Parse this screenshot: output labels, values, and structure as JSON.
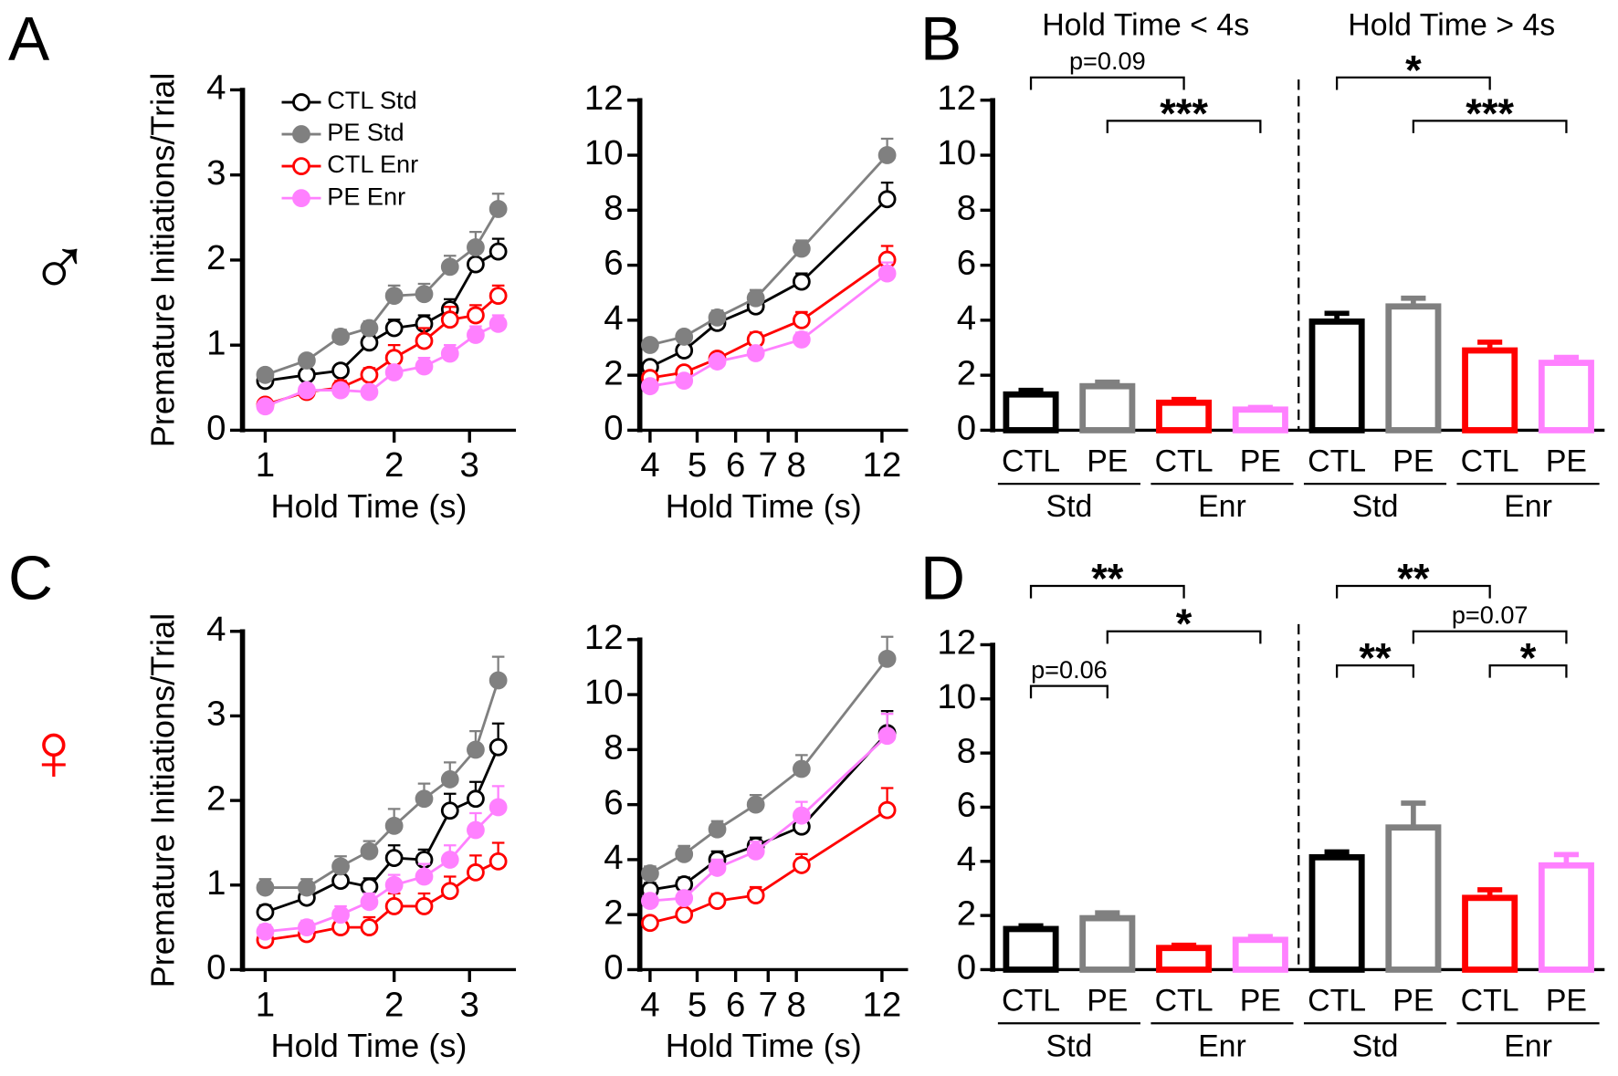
{
  "panel_labels": [
    "A",
    "B",
    "C",
    "D"
  ],
  "sex_symbols": [
    "♂",
    "♀"
  ],
  "chart_data": [
    {
      "type": "line",
      "xlog": true,
      "ylabel": "Premature Initiations/Trial",
      "xlabel": "Hold Time (s)",
      "legend": "upper left",
      "x": [
        1,
        1.25,
        1.5,
        1.75,
        2,
        2.35,
        2.7,
        3.1,
        3.5
      ],
      "xlim": [
        0.885,
        3.85
      ],
      "xticks": [
        1,
        2,
        3
      ],
      "ylim": [
        0,
        4
      ],
      "yticks": [
        0,
        1,
        2,
        3,
        4
      ],
      "series": [
        {
          "name": "CTL Std",
          "color": "#000000",
          "filled": false,
          "values": [
            0.58,
            0.65,
            0.7,
            1.03,
            1.2,
            1.25,
            1.42,
            1.95,
            2.1
          ],
          "errors": [
            0.05,
            0.05,
            0.06,
            0.08,
            0.1,
            0.1,
            0.12,
            0.15,
            0.15
          ]
        },
        {
          "name": "PE Std",
          "color": "#808080",
          "filled": true,
          "values": [
            0.65,
            0.82,
            1.1,
            1.2,
            1.58,
            1.6,
            1.92,
            2.15,
            2.6
          ],
          "errors": [
            0.05,
            0.05,
            0.08,
            0.08,
            0.12,
            0.12,
            0.13,
            0.18,
            0.18
          ]
        },
        {
          "name": "CTL Enr",
          "color": "#ff0000",
          "filled": false,
          "values": [
            0.3,
            0.45,
            0.5,
            0.65,
            0.85,
            1.05,
            1.3,
            1.35,
            1.58
          ],
          "errors": [
            0.05,
            0.08,
            0.08,
            0.08,
            0.15,
            0.15,
            0.15,
            0.12,
            0.12
          ]
        },
        {
          "name": "PE Enr",
          "color": "#ff80ff",
          "filled": true,
          "values": [
            0.28,
            0.47,
            0.47,
            0.45,
            0.68,
            0.75,
            0.9,
            1.12,
            1.25
          ],
          "errors": [
            0.05,
            0.05,
            0.05,
            0.05,
            0.08,
            0.1,
            0.1,
            0.1,
            0.1
          ]
        }
      ]
    },
    {
      "type": "line",
      "xlog": true,
      "xlabel": "Hold Time (s)",
      "x": [
        4,
        4.7,
        5.5,
        6.6,
        8.2,
        12.3
      ],
      "xlim": [
        3.81,
        13.58
      ],
      "xticks": [
        4,
        5,
        6,
        7,
        8,
        12
      ],
      "ylim": [
        0,
        12
      ],
      "yticks": [
        0,
        2,
        4,
        6,
        8,
        10,
        12
      ],
      "series": [
        {
          "name": "CTL Std",
          "color": "#000000",
          "filled": false,
          "values": [
            2.3,
            2.9,
            3.9,
            4.5,
            5.4,
            8.4
          ],
          "errors": [
            0.2,
            0.2,
            0.25,
            0.3,
            0.3,
            0.6
          ]
        },
        {
          "name": "PE Std",
          "color": "#808080",
          "filled": true,
          "values": [
            3.1,
            3.4,
            4.1,
            4.8,
            6.6,
            10
          ],
          "errors": [
            0.2,
            0.2,
            0.25,
            0.3,
            0.3,
            0.6
          ]
        },
        {
          "name": "CTL Enr",
          "color": "#ff0000",
          "filled": false,
          "values": [
            1.9,
            2.1,
            2.6,
            3.3,
            4.0,
            6.2
          ],
          "errors": [
            0.2,
            0.2,
            0.2,
            0.25,
            0.3,
            0.5
          ]
        },
        {
          "name": "PE Enr",
          "color": "#ff80ff",
          "filled": true,
          "values": [
            1.6,
            1.8,
            2.5,
            2.8,
            3.3,
            5.7
          ],
          "errors": [
            0.15,
            0.15,
            0.2,
            0.2,
            0.25,
            0.4
          ]
        }
      ]
    },
    {
      "type": "bar",
      "subtitles": [
        "Hold Time < 4s",
        "Hold Time > 4s"
      ],
      "categories": [
        "CTL",
        "PE",
        "CTL",
        "PE",
        "CTL",
        "PE",
        "CTL",
        "PE"
      ],
      "groups": [
        "Std",
        "Enr",
        "Std",
        "Enr"
      ],
      "colors": [
        "#000000",
        "#808080",
        "#ff0000",
        "#ff80ff",
        "#000000",
        "#808080",
        "#ff0000",
        "#ff80ff"
      ],
      "values": [
        1.3,
        1.6,
        1.0,
        0.75,
        3.95,
        4.5,
        2.9,
        2.45
      ],
      "errors": [
        0.15,
        0.15,
        0.12,
        0.08,
        0.3,
        0.3,
        0.3,
        0.2
      ],
      "ylim": [
        0,
        12
      ],
      "yticks": [
        0,
        2,
        4,
        6,
        8,
        10,
        12
      ],
      "annotations": [
        {
          "text": "p=0.09",
          "from": 0,
          "to": 2
        },
        {
          "text": "***",
          "from": 1,
          "to": 3
        },
        {
          "text": "*",
          "from": 4,
          "to": 6
        },
        {
          "text": "***",
          "from": 5,
          "to": 7
        }
      ]
    },
    {
      "type": "line",
      "xlog": true,
      "ylabel": "Premature Initiations/Trial",
      "xlabel": "Hold Time (s)",
      "x": [
        1,
        1.25,
        1.5,
        1.75,
        2,
        2.35,
        2.7,
        3.1,
        3.5
      ],
      "xlim": [
        0.885,
        3.85
      ],
      "xticks": [
        1,
        2,
        3
      ],
      "ylim": [
        0,
        4
      ],
      "yticks": [
        0,
        1,
        2,
        3,
        4
      ],
      "series": [
        {
          "name": "CTL Std",
          "color": "#000000",
          "filled": false,
          "values": [
            0.68,
            0.85,
            1.05,
            0.98,
            1.32,
            1.3,
            1.88,
            2.02,
            2.63
          ],
          "errors": [
            0.08,
            0.1,
            0.12,
            0.1,
            0.15,
            0.12,
            0.2,
            0.2,
            0.28
          ]
        },
        {
          "name": "PE Std",
          "color": "#808080",
          "filled": true,
          "values": [
            0.97,
            0.97,
            1.22,
            1.4,
            1.7,
            2.02,
            2.25,
            2.6,
            3.42
          ],
          "errors": [
            0.1,
            0.1,
            0.12,
            0.12,
            0.2,
            0.18,
            0.2,
            0.22,
            0.28
          ]
        },
        {
          "name": "CTL Enr",
          "color": "#ff0000",
          "filled": false,
          "values": [
            0.35,
            0.42,
            0.5,
            0.5,
            0.75,
            0.75,
            0.93,
            1.15,
            1.28
          ],
          "errors": [
            0.08,
            0.1,
            0.12,
            0.12,
            0.15,
            0.15,
            0.17,
            0.2,
            0.22
          ]
        },
        {
          "name": "PE Enr",
          "color": "#ff80ff",
          "filled": true,
          "values": [
            0.45,
            0.5,
            0.65,
            0.8,
            1.0,
            1.1,
            1.3,
            1.65,
            1.92
          ],
          "errors": [
            0.08,
            0.08,
            0.1,
            0.1,
            0.12,
            0.15,
            0.17,
            0.2,
            0.25
          ]
        }
      ]
    },
    {
      "type": "line",
      "xlog": true,
      "xlabel": "Hold Time (s)",
      "x": [
        4,
        4.7,
        5.5,
        6.6,
        8.2,
        12.3
      ],
      "xlim": [
        3.81,
        13.58
      ],
      "xticks": [
        4,
        5,
        6,
        7,
        8,
        12
      ],
      "ylim": [
        0,
        12
      ],
      "yticks": [
        0,
        2,
        4,
        6,
        8,
        10,
        12
      ],
      "series": [
        {
          "name": "CTL Std",
          "color": "#000000",
          "filled": false,
          "values": [
            2.9,
            3.1,
            4.0,
            4.5,
            5.2,
            8.6
          ],
          "errors": [
            0.25,
            0.25,
            0.3,
            0.3,
            0.5,
            0.8
          ]
        },
        {
          "name": "PE Std",
          "color": "#808080",
          "filled": true,
          "values": [
            3.5,
            4.2,
            5.1,
            6.0,
            7.3,
            11.3
          ],
          "errors": [
            0.25,
            0.3,
            0.3,
            0.35,
            0.5,
            0.8
          ]
        },
        {
          "name": "CTL Enr",
          "color": "#ff0000",
          "filled": false,
          "values": [
            1.7,
            2.0,
            2.5,
            2.7,
            3.8,
            5.8
          ],
          "errors": [
            0.2,
            0.2,
            0.25,
            0.3,
            0.4,
            0.8
          ]
        },
        {
          "name": "PE Enr",
          "color": "#ff80ff",
          "filled": true,
          "values": [
            2.5,
            2.6,
            3.7,
            4.3,
            5.6,
            8.5
          ],
          "errors": [
            0.25,
            0.25,
            0.3,
            0.35,
            0.5,
            0.8
          ]
        }
      ]
    },
    {
      "type": "bar",
      "categories": [
        "CTL",
        "PE",
        "CTL",
        "PE",
        "CTL",
        "PE",
        "CTL",
        "PE"
      ],
      "groups": [
        "Std",
        "Enr",
        "Std",
        "Enr"
      ],
      "colors": [
        "#000000",
        "#808080",
        "#ff0000",
        "#ff80ff",
        "#000000",
        "#808080",
        "#ff0000",
        "#ff80ff"
      ],
      "values": [
        1.5,
        1.9,
        0.8,
        1.1,
        4.15,
        5.25,
        2.65,
        3.85
      ],
      "errors": [
        0.12,
        0.2,
        0.1,
        0.12,
        0.2,
        0.9,
        0.3,
        0.4
      ],
      "ylim": [
        0,
        12
      ],
      "yticks": [
        0,
        2,
        4,
        6,
        8,
        10,
        12
      ],
      "annotations": [
        {
          "text": "**",
          "from": 0,
          "to": 2
        },
        {
          "text": "*",
          "from": 1,
          "to": 3
        },
        {
          "text": "p=0.06",
          "from": 0,
          "to": 1
        },
        {
          "text": "**",
          "from": 4,
          "to": 6
        },
        {
          "text": "**",
          "from": 4,
          "to": 5
        },
        {
          "text": "p=0.07",
          "from": 5,
          "to": 7
        },
        {
          "text": "*",
          "from": 6,
          "to": 7
        }
      ]
    }
  ]
}
